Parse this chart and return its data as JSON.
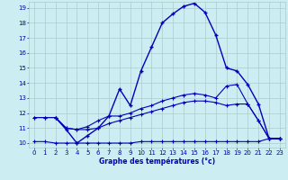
{
  "xlabel": "Graphe des températures (°c)",
  "xlim": [
    -0.5,
    23.5
  ],
  "ylim": [
    9.7,
    19.4
  ],
  "yticks": [
    10,
    11,
    12,
    13,
    14,
    15,
    16,
    17,
    18,
    19
  ],
  "xticks": [
    0,
    1,
    2,
    3,
    4,
    5,
    6,
    7,
    8,
    9,
    10,
    11,
    12,
    13,
    14,
    15,
    16,
    17,
    18,
    19,
    20,
    21,
    22,
    23
  ],
  "bg_color": "#cceef2",
  "grid_color": "#aacccc",
  "line_color": "#0000bb",
  "line3_x": [
    2,
    3,
    4,
    5,
    6,
    7,
    8,
    9,
    10,
    11,
    12,
    13,
    14,
    15,
    16,
    17,
    18,
    19,
    20,
    21,
    22,
    23
  ],
  "line3_y": [
    11.7,
    10.9,
    10.0,
    10.5,
    11.0,
    11.8,
    13.6,
    12.5,
    14.8,
    16.4,
    18.0,
    18.6,
    19.1,
    19.3,
    18.7,
    17.2,
    15.0,
    14.8,
    13.9,
    12.6,
    10.3,
    10.3
  ],
  "line1_x": [
    0,
    1,
    2,
    3,
    4,
    5,
    6,
    7,
    8,
    9,
    10,
    11,
    12,
    13,
    14,
    15,
    16,
    17,
    18,
    19,
    20,
    21,
    22,
    23
  ],
  "line1_y": [
    11.7,
    11.7,
    11.7,
    11.0,
    10.9,
    11.1,
    11.5,
    11.8,
    11.8,
    12.0,
    12.3,
    12.5,
    12.8,
    13.0,
    13.2,
    13.3,
    13.2,
    13.0,
    13.8,
    13.9,
    12.6,
    11.5,
    10.3,
    10.3
  ],
  "line2_x": [
    0,
    1,
    2,
    3,
    4,
    5,
    6,
    7,
    8,
    9,
    10,
    11,
    12,
    13,
    14,
    15,
    16,
    17,
    18,
    19,
    20,
    21,
    22,
    23
  ],
  "line2_y": [
    11.7,
    11.7,
    11.7,
    11.0,
    10.9,
    10.9,
    11.0,
    11.3,
    11.5,
    11.7,
    11.9,
    12.1,
    12.3,
    12.5,
    12.7,
    12.8,
    12.8,
    12.7,
    12.5,
    12.6,
    12.6,
    11.5,
    10.3,
    10.3
  ],
  "line4_x": [
    0,
    1,
    2,
    3,
    4,
    5,
    6,
    7,
    8,
    9,
    10,
    11,
    12,
    13,
    14,
    15,
    16,
    17,
    18,
    19,
    20,
    21,
    22,
    23
  ],
  "line4_y": [
    10.1,
    10.1,
    10.0,
    10.0,
    10.0,
    10.0,
    10.0,
    10.0,
    10.0,
    10.0,
    10.1,
    10.1,
    10.1,
    10.1,
    10.1,
    10.1,
    10.1,
    10.1,
    10.1,
    10.1,
    10.1,
    10.1,
    10.3,
    10.3
  ]
}
